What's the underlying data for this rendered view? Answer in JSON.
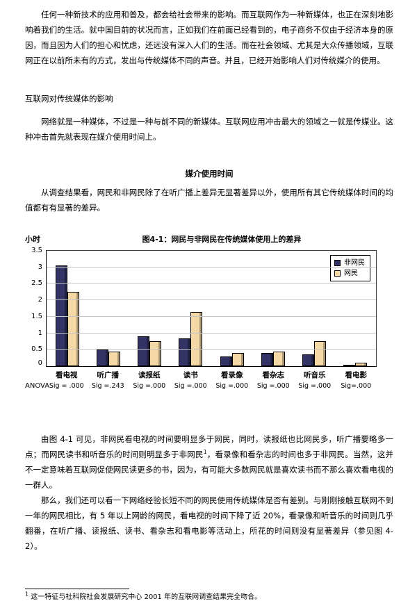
{
  "doc": {
    "para1": "任何一种新技术的应用和普及，都会给社会带来的影响。而互联网作为一种新媒体，也正在深刻地影响着我们的生活。就中国目前的状况而言，正如我们在前面已经看到的，电子商务不仅由于经济本身的原因，而且因为人们的担心和忧虑，还远没有深入人们的生活。而在社会领域、尤其是大众传播领域，互联网正在以前所未有的方式，发出与传统媒体不同的声音。并且，已经开始影响人们对传统媒介的使用。",
    "section_heading": "互联网对传统媒体的影响",
    "para2": "网络就是一种媒体，不过是一种与前不同的新媒体。互联网应用冲击最大的领域之一就是传媒业。这种冲击首先就表现在媒介使用时间上。",
    "media_time_heading": "媒介使用时间",
    "para3": "从调查结果看，网民和非网民除了在听广播上差异无显著差异以外，使用所有其它传统媒体时间的均值都有有显著的差异。",
    "para4_before": "由图 4-1 可见，非网民看电视的时间要明显多于网民，同时，读报纸也比网民多，听广播要略多一点；而网民读书和听音乐的时间则明显多于非网民",
    "para4_sup": "1",
    "para4_after": "，看录像和看杂志的时间也多于非网民。当然，这并不一定意味着互联网促使网民读更多的书，因为，有可能大多数网民就是喜欢读书而不那么喜欢看电视的一群人。",
    "para5": "那么，我们还可以看一下网络经验长短不同的网民使用传统媒体是否有差别。与刚刚接触互联网不到一年的网民相比，有 5 年以上网龄的网民，看电视的时间下降了近 20%，看录像和听音乐的时间则几乎翻番，在听广播、读报纸、读书、看杂志和看电影等活动上，所花的时间则没有显著差异（参见图 4-2）。",
    "footnote_marker": "1",
    "footnote_text": "这一特征与社科院社会发展研究中心 2001 年的互联网调查结果完全吻合。"
  },
  "chart_data": {
    "type": "bar",
    "title": "图4-1：网民与非网民在传统媒体使用上的差异",
    "ylabel": "小时",
    "ylim": [
      0,
      3.5
    ],
    "yticks": [
      0,
      0.5,
      1,
      1.5,
      2,
      2.5,
      3,
      3.5
    ],
    "grid": true,
    "legend_position": "top-right",
    "categories": [
      "看电视",
      "听广播",
      "读报纸",
      "读书",
      "看录像",
      "看杂志",
      "听音乐",
      "看电影"
    ],
    "series": [
      {
        "name": "非网民",
        "color": "#333366",
        "values": [
          3.05,
          0.5,
          0.9,
          0.85,
          0.3,
          0.4,
          0.35,
          0.03
        ]
      },
      {
        "name": "网民",
        "color": "#F4D9A6",
        "values": [
          2.25,
          0.45,
          0.75,
          1.65,
          0.4,
          0.45,
          0.75,
          0.1
        ]
      }
    ],
    "anova_label": "ANOVA",
    "sig_values": [
      "Sig = .000",
      "Sig =.243",
      "Sig =.000",
      "Sig =.000",
      "Sig =.000",
      "Sig =.000",
      "Sig =.000",
      "Sig=.000"
    ]
  }
}
